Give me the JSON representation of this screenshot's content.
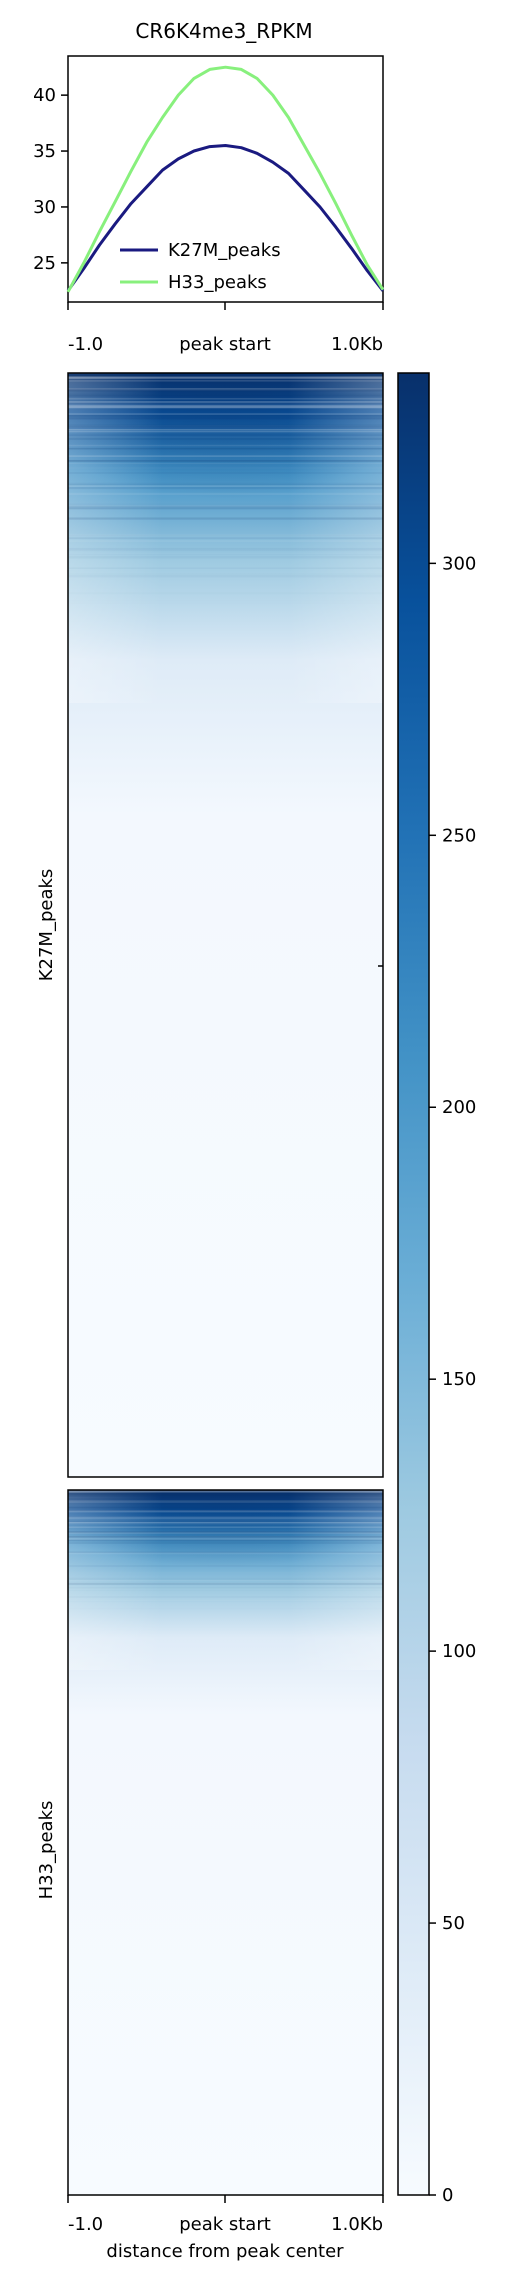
{
  "chart_data": [
    {
      "type": "line",
      "title": "CR6K4me3_RPKM",
      "xlabel": "",
      "ylabel": "",
      "x_ticks": [
        "-1.0",
        "peak start",
        "1.0Kb"
      ],
      "xlim": [
        -1.0,
        1.0
      ],
      "ylim": [
        21.5,
        43.5
      ],
      "y_ticks": [
        25,
        30,
        35,
        40
      ],
      "x": [
        -1.0,
        -0.9,
        -0.8,
        -0.7,
        -0.6,
        -0.5,
        -0.4,
        -0.3,
        -0.2,
        -0.1,
        0.0,
        0.1,
        0.2,
        0.3,
        0.4,
        0.5,
        0.6,
        0.7,
        0.8,
        0.9,
        1.0
      ],
      "series": [
        {
          "name": "K27M_peaks",
          "color": "#1a1a80",
          "values": [
            22.5,
            24.5,
            26.6,
            28.5,
            30.3,
            31.8,
            33.3,
            34.3,
            35.0,
            35.4,
            35.5,
            35.3,
            34.8,
            34.0,
            33.0,
            31.5,
            30.0,
            28.2,
            26.3,
            24.3,
            22.5
          ]
        },
        {
          "name": "H33_peaks",
          "color": "#88f07d",
          "values": [
            22.4,
            25.0,
            27.8,
            30.5,
            33.2,
            35.8,
            38.0,
            40.0,
            41.5,
            42.3,
            42.5,
            42.3,
            41.5,
            40.0,
            38.0,
            35.5,
            33.0,
            30.3,
            27.5,
            24.8,
            22.6
          ]
        }
      ],
      "legend": "lower-center"
    },
    {
      "type": "heatmap",
      "xlabel": "distance from peak center",
      "x_ticks": [
        "-1.0",
        "peak start",
        "1.0Kb"
      ],
      "groups": [
        {
          "name": "K27M_peaks",
          "strong_fraction": 0.09,
          "medium_fraction": 0.17,
          "weak_fraction": 0.26
        },
        {
          "name": "H33_peaks",
          "strong_fraction": 0.07,
          "medium_fraction": 0.14,
          "weak_fraction": 0.21
        }
      ],
      "colormap": "Blues",
      "colorbar": {
        "min": 0,
        "max": 335,
        "ticks": [
          0,
          50,
          100,
          150,
          200,
          250,
          300
        ]
      }
    }
  ]
}
